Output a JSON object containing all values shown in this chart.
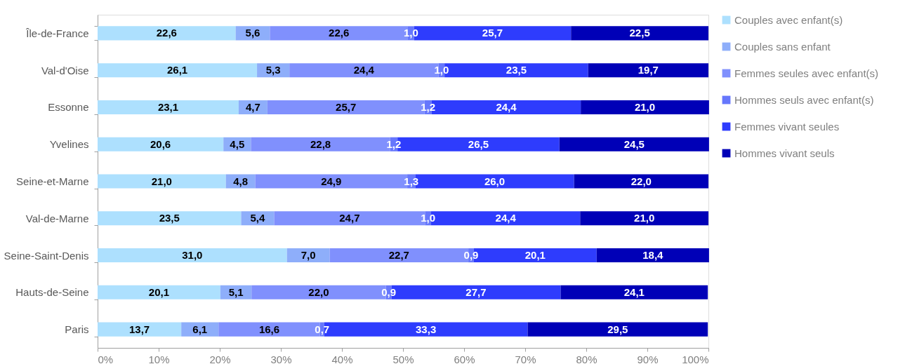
{
  "chart_data": {
    "type": "bar",
    "orientation": "horizontal",
    "stacked": true,
    "categories": [
      "Île-de-France",
      "Val-d'Oise",
      "Essonne",
      "Yvelines",
      "Seine-et-Marne",
      "Val-de-Marne",
      "Seine-Saint-Denis",
      "Hauts-de-Seine",
      "Paris"
    ],
    "series": [
      {
        "name": "Couples avec enfant(s)",
        "color": "#ade0fe",
        "values": [
          22.6,
          26.1,
          23.1,
          20.6,
          21.0,
          23.5,
          31.0,
          20.1,
          13.7
        ],
        "value_labels": [
          "22,6",
          "26,1",
          "23,1",
          "20,6",
          "21,0",
          "23,5",
          "31,0",
          "20,1",
          "13,7"
        ]
      },
      {
        "name": "Couples sans enfant",
        "color": "#8eaefa",
        "values": [
          5.6,
          5.3,
          4.7,
          4.5,
          4.8,
          5.4,
          7.0,
          5.1,
          6.1
        ],
        "value_labels": [
          "5,6",
          "5,3",
          "4,7",
          "4,5",
          "4,8",
          "5,4",
          "7,0",
          "5,1",
          "6,1"
        ]
      },
      {
        "name": "Femmes seules avec enfant(s)",
        "color": "#8090fd",
        "values": [
          22.6,
          24.4,
          25.7,
          22.8,
          24.9,
          24.7,
          22.7,
          22.0,
          16.6
        ],
        "value_labels": [
          "22,6",
          "24,4",
          "25,7",
          "22,8",
          "24,9",
          "24,7",
          "22,7",
          "22,0",
          "16,6"
        ]
      },
      {
        "name": "Hommes seuls avec enfant(s)",
        "color": "#6677fc",
        "values": [
          1.0,
          1.0,
          1.2,
          1.2,
          1.3,
          1.0,
          0.9,
          0.9,
          0.7
        ],
        "value_labels": [
          "1,0",
          "1,0",
          "1,2",
          "1,2",
          "1,3",
          "1,0",
          "0,9",
          "0,9",
          "0,7"
        ]
      },
      {
        "name": "Femmes vivant seules",
        "color": "#2e3cfd",
        "values": [
          25.7,
          23.5,
          24.4,
          26.5,
          26.0,
          24.4,
          20.1,
          27.7,
          33.3
        ],
        "value_labels": [
          "25,7",
          "23,5",
          "24,4",
          "26,5",
          "26,0",
          "24,4",
          "20,1",
          "27,7",
          "33,3"
        ]
      },
      {
        "name": "Hommes vivant seuls",
        "color": "#0000b7",
        "values": [
          22.5,
          19.7,
          21.0,
          24.5,
          22.0,
          21.0,
          18.4,
          24.1,
          29.5
        ],
        "value_labels": [
          "22,5",
          "19,7",
          "21,0",
          "24,5",
          "22,0",
          "21,0",
          "18,4",
          "24,1",
          "29,5"
        ]
      }
    ],
    "xlim": [
      0,
      100
    ],
    "xticks": [
      {
        "value": 0,
        "label": "0%"
      },
      {
        "value": 10,
        "label": "10%"
      },
      {
        "value": 20,
        "label": "20%"
      },
      {
        "value": 30,
        "label": "30%"
      },
      {
        "value": 40,
        "label": "40%"
      },
      {
        "value": 50,
        "label": "50%"
      },
      {
        "value": 60,
        "label": "60%"
      },
      {
        "value": 70,
        "label": "70%"
      },
      {
        "value": 80,
        "label": "80%"
      },
      {
        "value": 90,
        "label": "90%"
      },
      {
        "value": 100,
        "label": "100%"
      }
    ],
    "grid": false,
    "legend": "right"
  }
}
